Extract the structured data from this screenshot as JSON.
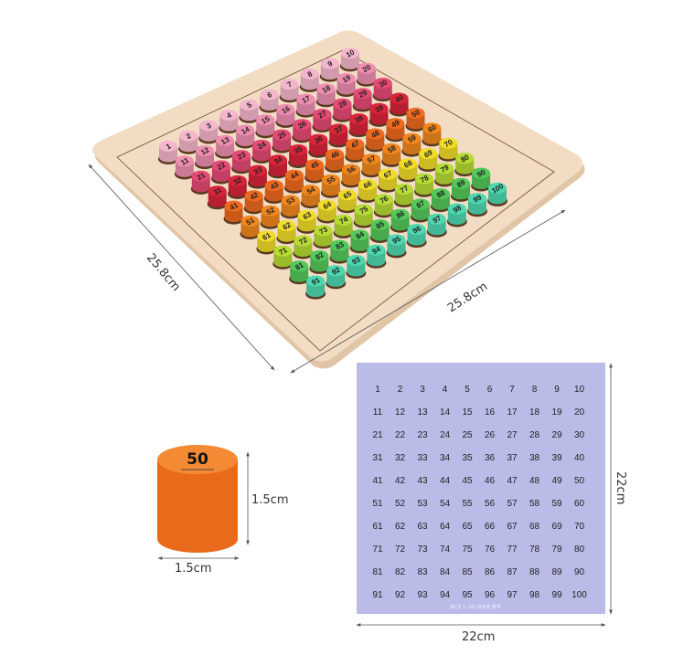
{
  "board": {
    "width_label": "25.8cm",
    "depth_label": "25.8cm",
    "row_colors": [
      "#f4b6cc",
      "#ee8fb0",
      "#e54a74",
      "#d8253a",
      "#ee6a1e",
      "#f1871f",
      "#f1dc2a",
      "#b7dc34",
      "#54c85a",
      "#4ed8b0"
    ],
    "wood_color": "#f2dcc3"
  },
  "single_peg": {
    "number": "50",
    "height_label": "1.5cm",
    "width_label": "1.5cm",
    "color": "#f07a24"
  },
  "sheet": {
    "color": "#bbbbe8",
    "numbers_from": 1,
    "numbers_to": 100,
    "footer": "第1页   1~100 点序表   数学",
    "height_label": "22cm",
    "width_label": "22cm"
  }
}
